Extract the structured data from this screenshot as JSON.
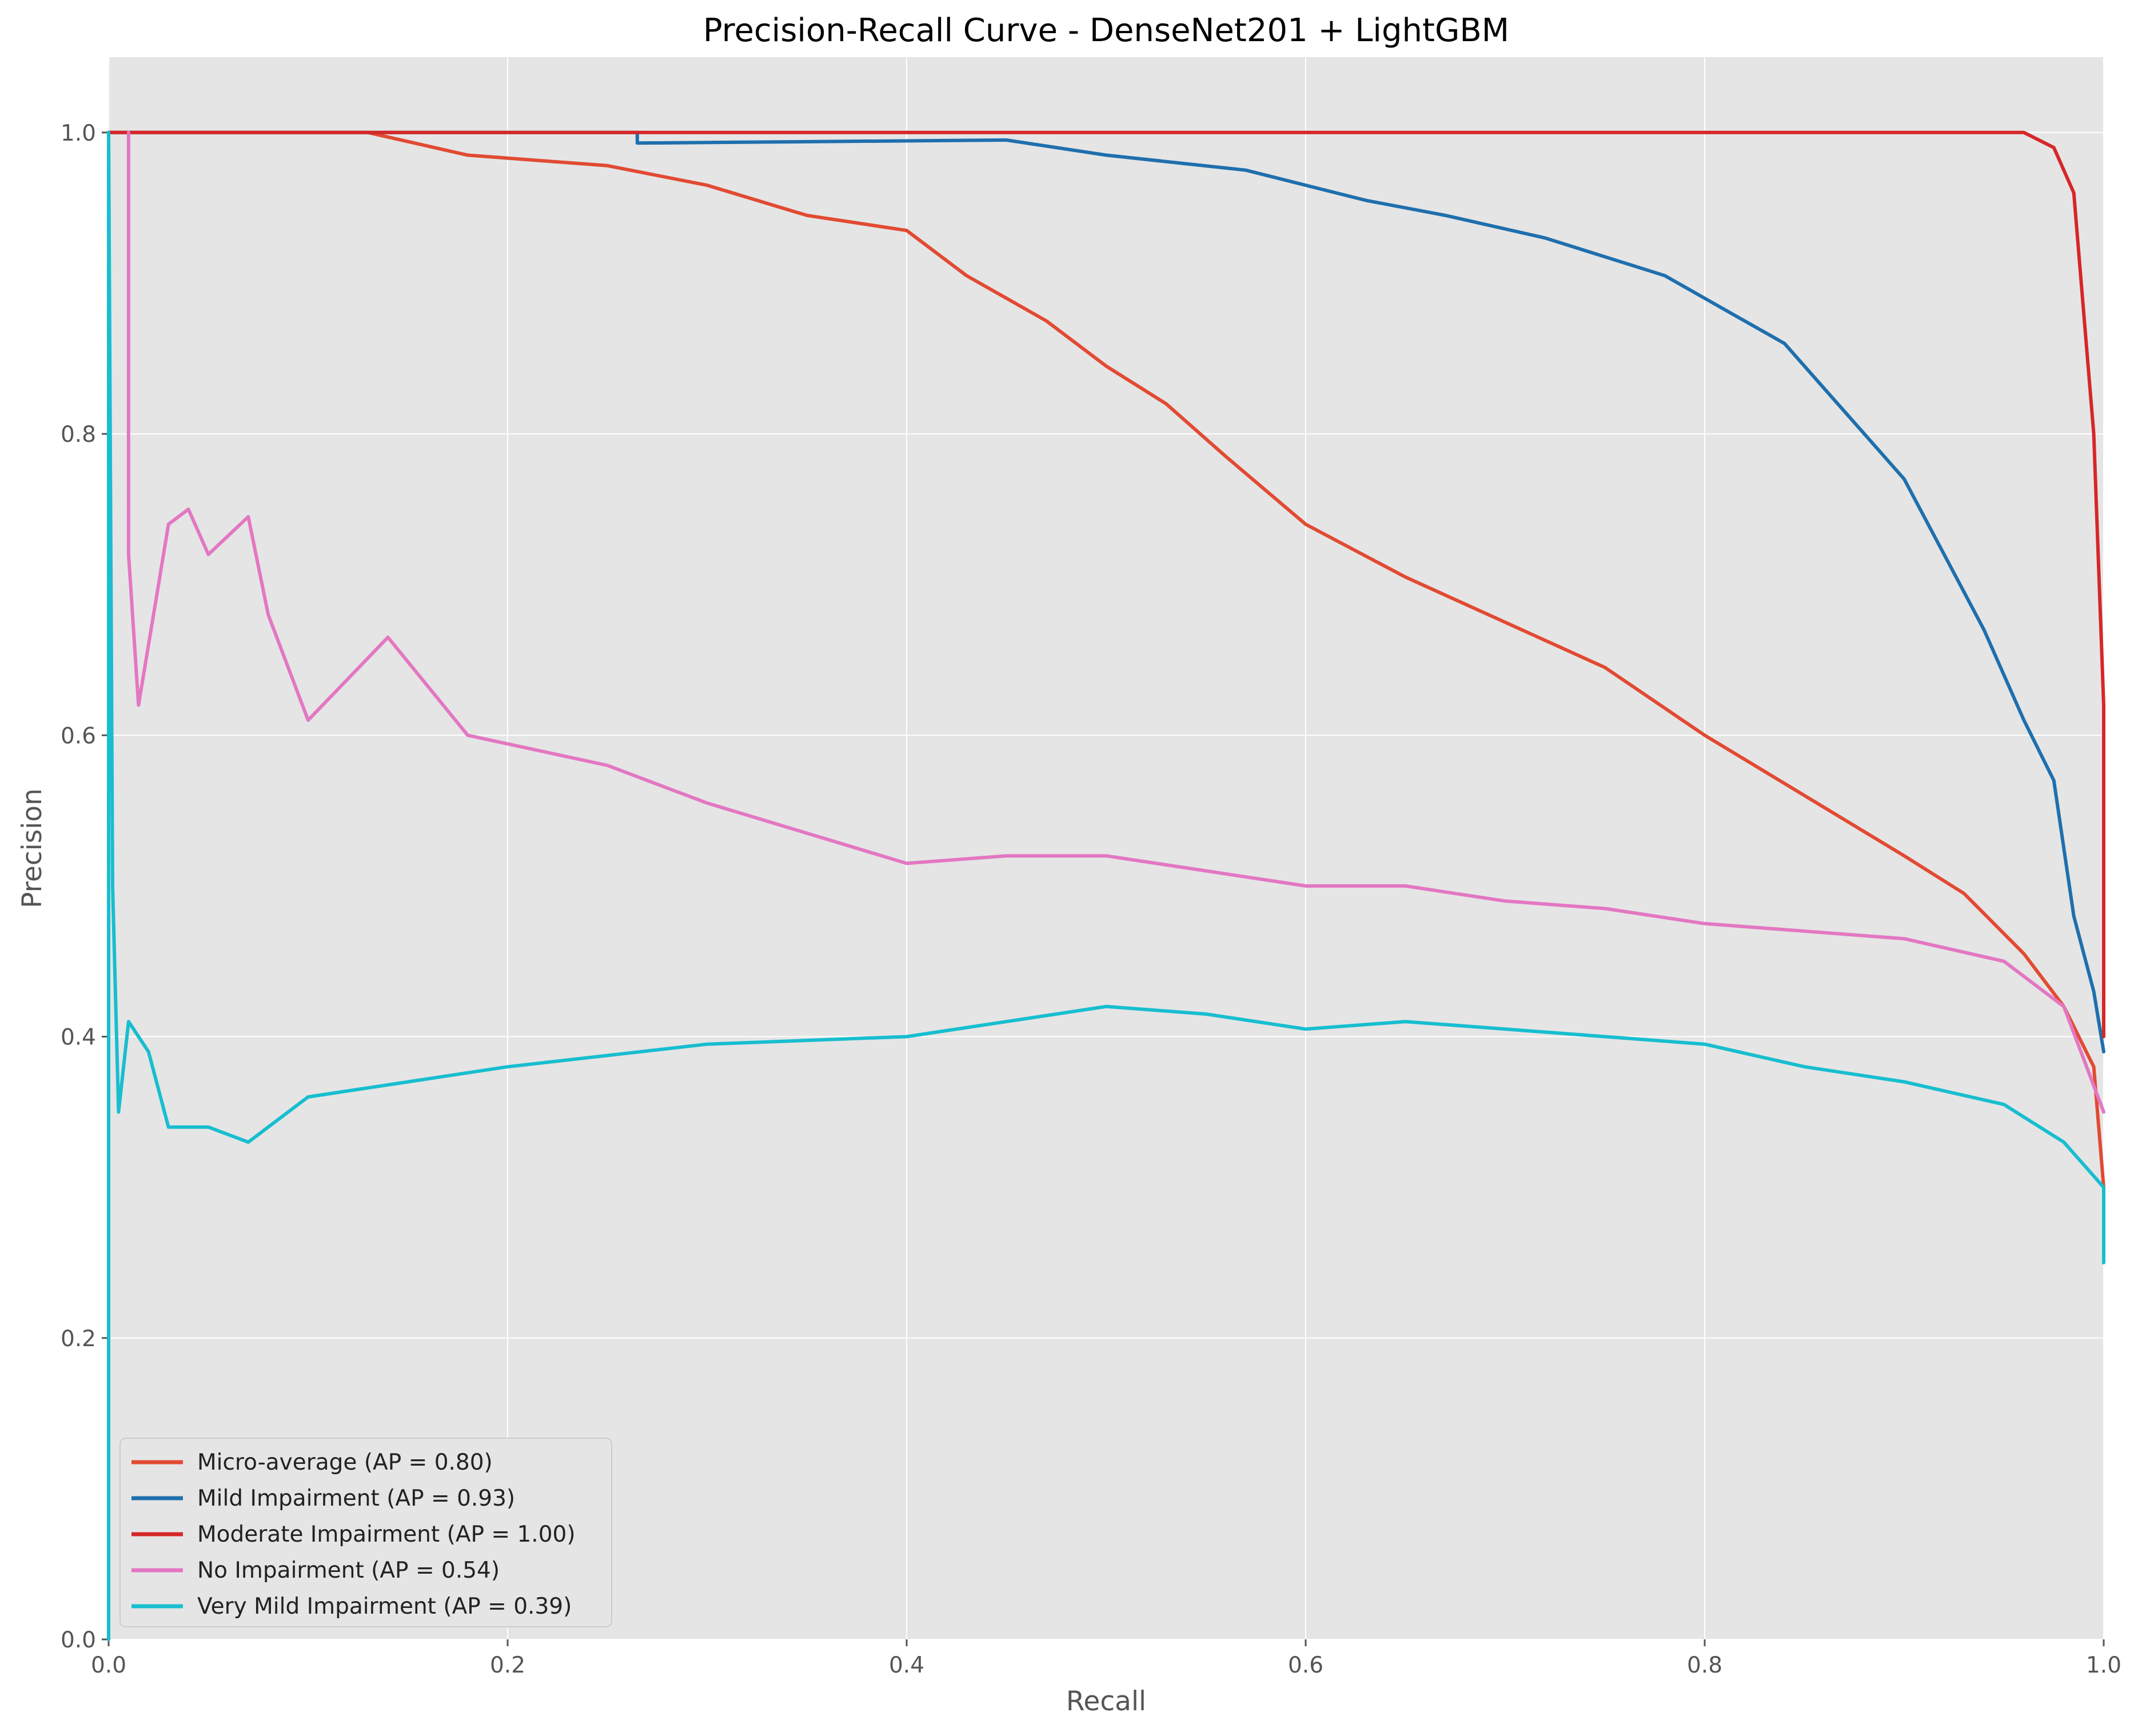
{
  "chart_data": {
    "type": "line",
    "title": "Precision-Recall Curve - DenseNet201 + LightGBM",
    "xlabel": "Recall",
    "ylabel": "Precision",
    "xlim": [
      0,
      1
    ],
    "ylim": [
      0,
      1.05
    ],
    "xticks": [
      "0.0",
      "0.2",
      "0.4",
      "0.6",
      "0.8",
      "1.0"
    ],
    "yticks": [
      "0.0",
      "0.2",
      "0.4",
      "0.6",
      "0.8",
      "1.0"
    ],
    "grid": true,
    "background": "#e5e5e5",
    "legend_position": "lower-left",
    "series": [
      {
        "name": "Micro-average (AP = 0.80)",
        "color": "#e24a33",
        "points": [
          [
            0,
            1.0
          ],
          [
            0.13,
            1.0
          ],
          [
            0.18,
            0.985
          ],
          [
            0.25,
            0.978
          ],
          [
            0.3,
            0.965
          ],
          [
            0.35,
            0.945
          ],
          [
            0.4,
            0.935
          ],
          [
            0.43,
            0.905
          ],
          [
            0.47,
            0.875
          ],
          [
            0.5,
            0.845
          ],
          [
            0.53,
            0.82
          ],
          [
            0.56,
            0.785
          ],
          [
            0.6,
            0.74
          ],
          [
            0.65,
            0.705
          ],
          [
            0.7,
            0.675
          ],
          [
            0.75,
            0.645
          ],
          [
            0.8,
            0.6
          ],
          [
            0.85,
            0.56
          ],
          [
            0.9,
            0.52
          ],
          [
            0.93,
            0.495
          ],
          [
            0.96,
            0.455
          ],
          [
            0.98,
            0.42
          ],
          [
            0.995,
            0.38
          ],
          [
            1.0,
            0.3
          ]
        ]
      },
      {
        "name": "Mild Impairment (AP = 0.93)",
        "color": "#1f6fad",
        "points": [
          [
            0,
            1.0
          ],
          [
            0.265,
            1.0
          ],
          [
            0.265,
            0.993
          ],
          [
            0.45,
            0.995
          ],
          [
            0.5,
            0.985
          ],
          [
            0.57,
            0.975
          ],
          [
            0.63,
            0.955
          ],
          [
            0.67,
            0.945
          ],
          [
            0.72,
            0.93
          ],
          [
            0.78,
            0.905
          ],
          [
            0.8,
            0.89
          ],
          [
            0.84,
            0.86
          ],
          [
            0.86,
            0.83
          ],
          [
            0.88,
            0.8
          ],
          [
            0.9,
            0.77
          ],
          [
            0.92,
            0.72
          ],
          [
            0.94,
            0.67
          ],
          [
            0.96,
            0.61
          ],
          [
            0.975,
            0.57
          ],
          [
            0.985,
            0.48
          ],
          [
            0.995,
            0.43
          ],
          [
            1.0,
            0.39
          ]
        ]
      },
      {
        "name": "Moderate Impairment (AP = 1.00)",
        "color": "#d62728",
        "points": [
          [
            0,
            1.0
          ],
          [
            0.96,
            1.0
          ],
          [
            0.975,
            0.99
          ],
          [
            0.985,
            0.96
          ],
          [
            0.99,
            0.88
          ],
          [
            0.995,
            0.8
          ],
          [
            1.0,
            0.62
          ],
          [
            1.0,
            0.4
          ]
        ]
      },
      {
        "name": "No Impairment (AP = 0.54)",
        "color": "#e377c2",
        "points": [
          [
            0.01,
            1.0
          ],
          [
            0.01,
            0.72
          ],
          [
            0.015,
            0.62
          ],
          [
            0.025,
            0.7
          ],
          [
            0.03,
            0.74
          ],
          [
            0.04,
            0.75
          ],
          [
            0.05,
            0.72
          ],
          [
            0.07,
            0.745
          ],
          [
            0.08,
            0.68
          ],
          [
            0.1,
            0.61
          ],
          [
            0.14,
            0.665
          ],
          [
            0.18,
            0.6
          ],
          [
            0.25,
            0.58
          ],
          [
            0.3,
            0.555
          ],
          [
            0.35,
            0.535
          ],
          [
            0.4,
            0.515
          ],
          [
            0.45,
            0.52
          ],
          [
            0.5,
            0.52
          ],
          [
            0.55,
            0.51
          ],
          [
            0.6,
            0.5
          ],
          [
            0.65,
            0.5
          ],
          [
            0.7,
            0.49
          ],
          [
            0.75,
            0.485
          ],
          [
            0.8,
            0.475
          ],
          [
            0.85,
            0.47
          ],
          [
            0.9,
            0.465
          ],
          [
            0.95,
            0.45
          ],
          [
            0.98,
            0.42
          ],
          [
            1.0,
            0.35
          ]
        ]
      },
      {
        "name": "Very Mild Impairment (AP = 0.39)",
        "color": "#17becf",
        "points": [
          [
            0,
            0.0
          ],
          [
            0.0,
            1.0
          ],
          [
            0.002,
            0.5
          ],
          [
            0.005,
            0.35
          ],
          [
            0.01,
            0.41
          ],
          [
            0.02,
            0.39
          ],
          [
            0.03,
            0.34
          ],
          [
            0.05,
            0.34
          ],
          [
            0.07,
            0.33
          ],
          [
            0.1,
            0.36
          ],
          [
            0.15,
            0.37
          ],
          [
            0.2,
            0.38
          ],
          [
            0.3,
            0.395
          ],
          [
            0.4,
            0.4
          ],
          [
            0.45,
            0.41
          ],
          [
            0.5,
            0.42
          ],
          [
            0.55,
            0.415
          ],
          [
            0.6,
            0.405
          ],
          [
            0.65,
            0.41
          ],
          [
            0.7,
            0.405
          ],
          [
            0.75,
            0.4
          ],
          [
            0.8,
            0.395
          ],
          [
            0.85,
            0.38
          ],
          [
            0.9,
            0.37
          ],
          [
            0.95,
            0.355
          ],
          [
            0.98,
            0.33
          ],
          [
            1.0,
            0.3
          ],
          [
            1.0,
            0.25
          ]
        ]
      }
    ]
  }
}
